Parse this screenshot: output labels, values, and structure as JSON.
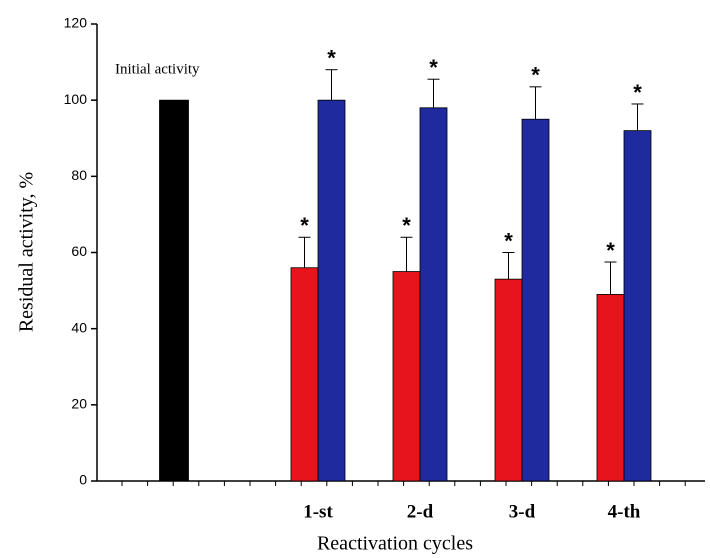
{
  "chart_data": {
    "type": "bar",
    "x_label": "Reactivation cycles",
    "y_label": "Residual activity, %",
    "annotation": "Initial activity",
    "categories": [
      null,
      "1-st",
      "2-d",
      "3-d",
      "4-th"
    ],
    "series": [
      {
        "color": "#000000",
        "values": [
          100,
          null,
          null,
          null,
          null
        ]
      },
      {
        "color": "#e8141c",
        "values": [
          null,
          56,
          55,
          53,
          49
        ],
        "errors": [
          null,
          8,
          9,
          7,
          8.5
        ],
        "labels": [
          null,
          "*",
          "*",
          "*",
          "*"
        ]
      },
      {
        "color": "#1f2a9e",
        "values": [
          null,
          100,
          98,
          95,
          92
        ],
        "errors": [
          null,
          8,
          7.5,
          8.5,
          7
        ],
        "labels": [
          null,
          "*",
          "*",
          "*",
          "*"
        ]
      }
    ],
    "ylim": [
      0,
      120
    ],
    "yticks": [
      0,
      20,
      40,
      60,
      80,
      100,
      120
    ]
  }
}
